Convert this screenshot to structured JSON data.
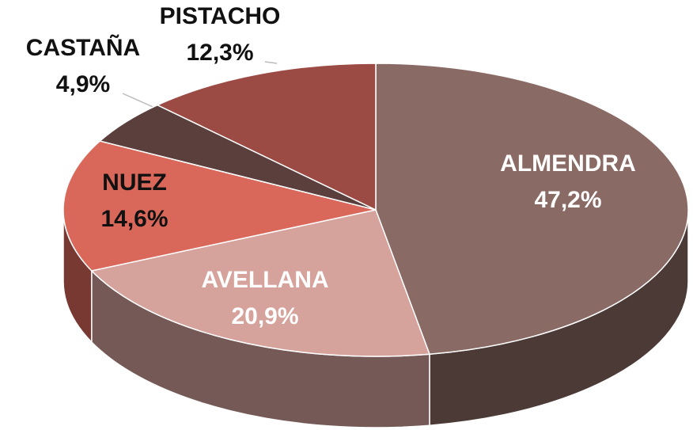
{
  "chart_data": {
    "type": "pie3d",
    "categories": [
      "ALMENDRA",
      "AVELLANA",
      "NUEZ",
      "CASTAÑA",
      "PISTACHO"
    ],
    "values": [
      47.2,
      20.9,
      14.6,
      4.9,
      12.3
    ],
    "value_labels": [
      "47,2%",
      "20,9%",
      "14,6%",
      "4,9%",
      "12,3%"
    ],
    "colors": [
      "#8a6a64",
      "#d5a29c",
      "#d9675a",
      "#5a3f3d",
      "#9b4a44"
    ]
  }
}
